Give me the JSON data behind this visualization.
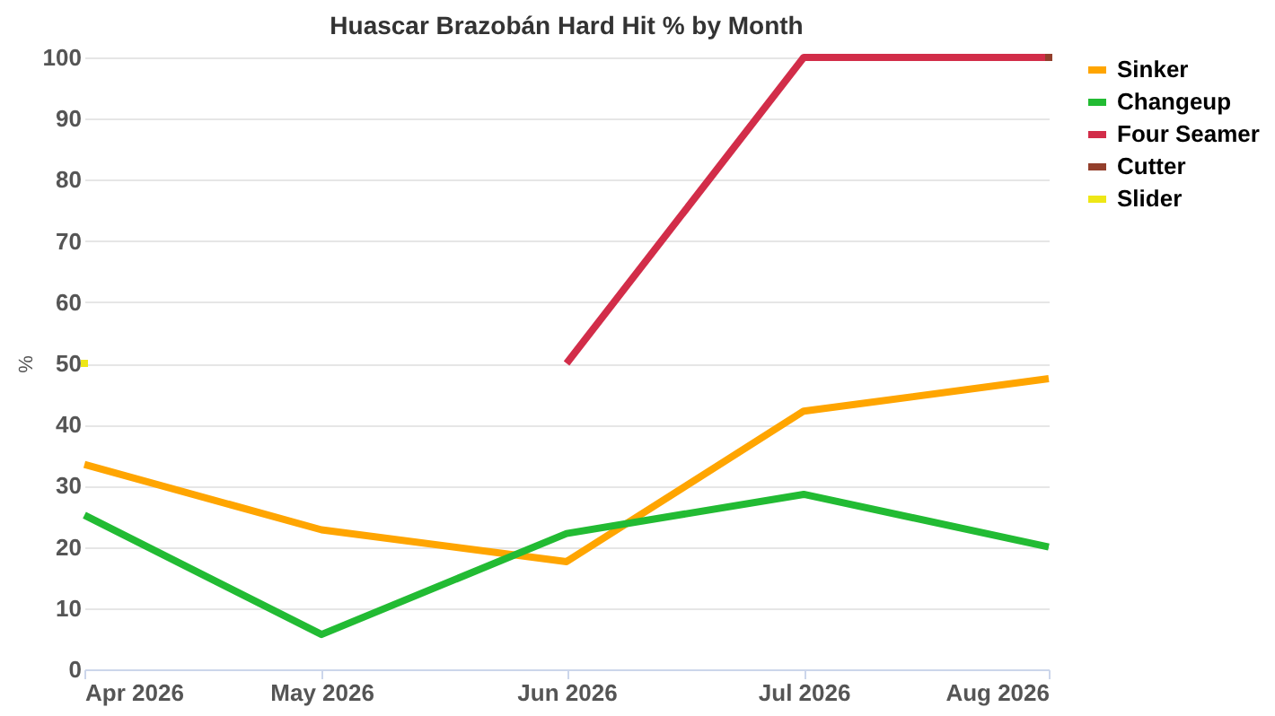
{
  "chart_data": {
    "type": "line",
    "title": "Huascar Brazobán Hard Hit % by Month",
    "ylabel": "%",
    "x": [
      "2026-04",
      "2026-05",
      "2026-06",
      "2026-07",
      "2026-08"
    ],
    "xlim": [
      "2026-04",
      "2026-08"
    ],
    "xticks": [
      {
        "value": "2026-04",
        "label": "Apr 2026"
      },
      {
        "value": "2026-05",
        "label": "May 2026"
      },
      {
        "value": "2026-06",
        "label": "Jun 2026"
      },
      {
        "value": "2026-07",
        "label": "Jul 2026"
      },
      {
        "value": "2026-08",
        "label": "Aug 2026"
      }
    ],
    "ylim": [
      0,
      100
    ],
    "yticks": [
      0,
      10,
      20,
      30,
      40,
      50,
      60,
      70,
      80,
      90,
      100
    ],
    "series": [
      {
        "name": "Sinker",
        "color": "#ffa500",
        "values": [
          33.5,
          22.8,
          17.6,
          42.2,
          47.5
        ]
      },
      {
        "name": "Changeup",
        "color": "#22bb33",
        "values": [
          25.2,
          5.7,
          22.2,
          28.6,
          20.0
        ]
      },
      {
        "name": "Four Seamer",
        "color": "#d22d49",
        "values": [
          null,
          null,
          50,
          100,
          100
        ]
      },
      {
        "name": "Cutter",
        "color": "#933f2c",
        "values": [
          null,
          null,
          null,
          null,
          100
        ],
        "marker": "square"
      },
      {
        "name": "Slider",
        "color": "#eee716",
        "values": [
          50,
          null,
          null,
          null,
          null
        ],
        "marker": "square"
      }
    ],
    "grid": "y",
    "legend": "right",
    "line_style": "solid"
  }
}
